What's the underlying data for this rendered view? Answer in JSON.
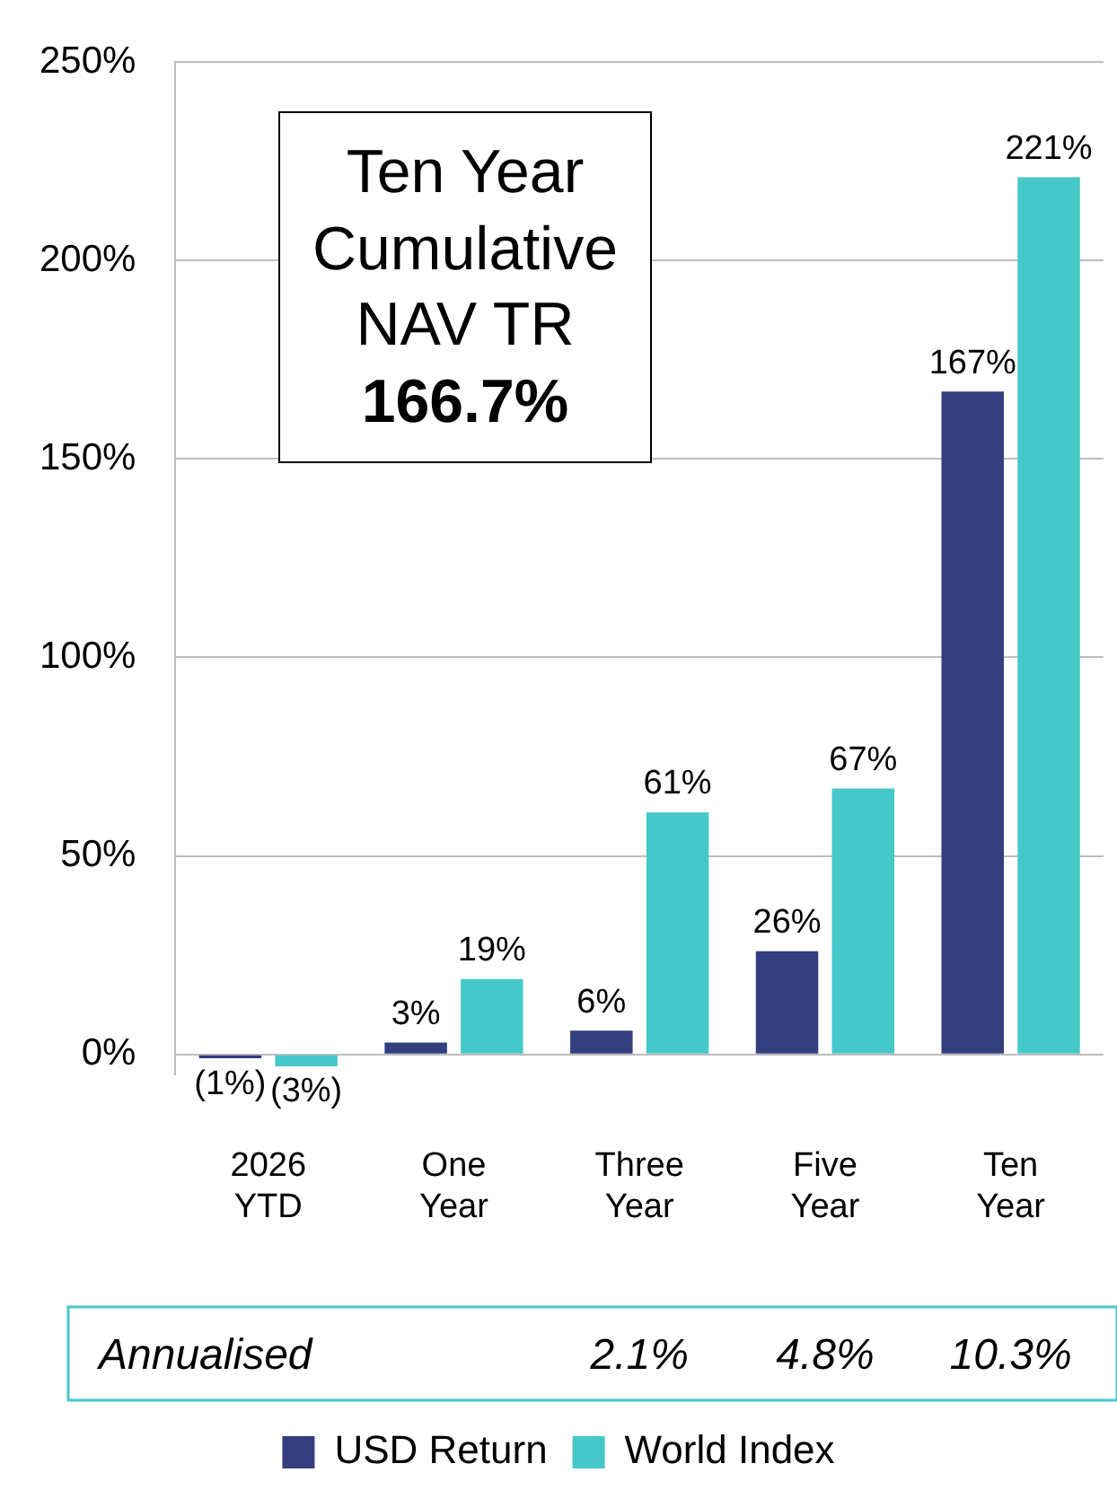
{
  "chart_data": {
    "type": "bar",
    "categories": [
      "2026 YTD",
      "One Year",
      "Three Year",
      "Five Year",
      "Ten Year"
    ],
    "series": [
      {
        "name": "USD Return",
        "color": "#333f7f",
        "values": [
          -1,
          3,
          6,
          26,
          167
        ],
        "value_labels": [
          "(1%)",
          "3%",
          "6%",
          "26%",
          "167%"
        ]
      },
      {
        "name": "World Index",
        "color": "#47c8c8",
        "values": [
          -3,
          19,
          61,
          67,
          221
        ],
        "value_labels": [
          "(3%)",
          "19%",
          "61%",
          "67%",
          "221%"
        ]
      }
    ],
    "ylim": [
      -5,
      250
    ],
    "yticks": [
      {
        "value": 0,
        "label": "0%"
      },
      {
        "value": 50,
        "label": "50%"
      },
      {
        "value": 100,
        "label": "100%"
      },
      {
        "value": 150,
        "label": "150%"
      },
      {
        "value": 200,
        "label": "200%"
      },
      {
        "value": 250,
        "label": "250%"
      }
    ],
    "grid": "y",
    "legend": "bottom",
    "annotations": [
      "Ten Year Cumulative NAV TR",
      "166.7%",
      "Annualised",
      "2.1%",
      "4.8%",
      "10.3%"
    ]
  }
}
